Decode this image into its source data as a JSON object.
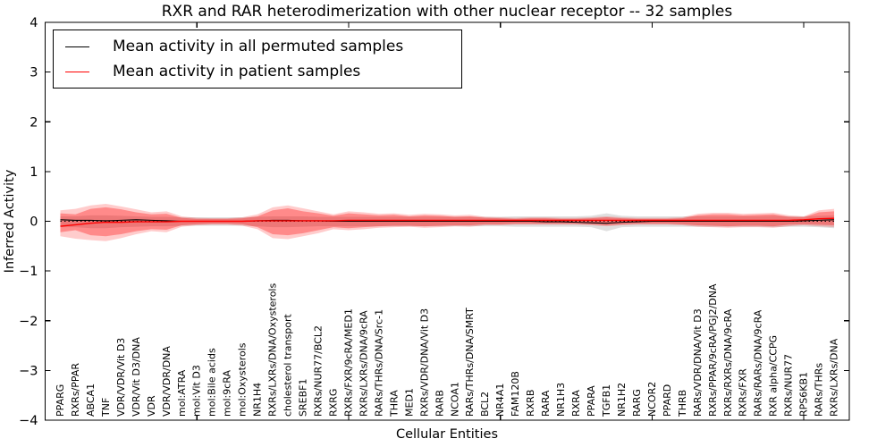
{
  "chart_data": {
    "type": "line",
    "title": "RXR and RAR heterodimerization with other nuclear receptor -- 32 samples",
    "xlabel": "Cellular Entities",
    "ylabel": "Inferred Activity",
    "ylim": [
      -4,
      4
    ],
    "yticks": [
      -4,
      -3,
      -2,
      -1,
      0,
      1,
      2,
      3,
      4
    ],
    "x_tick_positions": [
      10,
      20,
      30,
      40,
      50
    ],
    "grid": false,
    "legend_position": "upper left",
    "zero_line": {
      "color": "#000000",
      "style": "dotted"
    },
    "categories": [
      "PPARG",
      "RXRs/PPAR",
      "ABCA1",
      "TNF",
      "VDR/VDR/Vit D3",
      "VDR/Vit D3/DNA",
      "VDR",
      "VDR/VDR/DNA",
      "mol:ATRA",
      "mol:Vit D3",
      "mol:Bile acids",
      "mol:9cRA",
      "mol:Oxysterols",
      "NR1H4",
      "RXRs/LXRs/DNA/Oxysterols",
      "cholesterol transport",
      "SREBF1",
      "RXRs/NUR77/BCL2",
      "RXRG",
      "RXRs/FXR/9cRA/MED1",
      "RXRs/LXRs/DNA/9cRA",
      "RARs/THRs/DNA/Src-1",
      "THRA",
      "MED1",
      "RXRs/VDR/DNA/Vit D3",
      "RARB",
      "NCOA1",
      "RARs/THRs/DNA/SMRT",
      "BCL2",
      "NR4A1",
      "FAM120B",
      "RXRB",
      "RARA",
      "NR1H3",
      "RXRA",
      "PPARA",
      "TGFB1",
      "NR1H2",
      "RARG",
      "NCOR2",
      "PPARD",
      "THRB",
      "RARs/VDR/DNA/Vit D3",
      "RXRs/PPAR/9cRA/PGJ2/DNA",
      "RXRs/RXRs/DNA/9cRA",
      "RXRs/FXR",
      "RARs/RARs/DNA/9cRA",
      "RXR alpha/CCPG",
      "RXRs/NUR77",
      "RPS6KB1",
      "RARs/THRs",
      "RXRs/LXRs/DNA"
    ],
    "series": [
      {
        "name": "Mean activity in all permuted samples",
        "color": "#000000",
        "values": [
          0.03,
          0.02,
          0.02,
          0.01,
          0.02,
          0.03,
          0.02,
          0.01,
          0,
          0,
          0,
          0,
          0,
          0.01,
          0.02,
          0.02,
          0.01,
          0.01,
          0,
          0,
          0,
          0,
          0,
          0,
          0,
          0,
          0,
          0,
          0,
          0,
          0,
          0,
          -0.01,
          -0.01,
          -0.02,
          -0.03,
          -0.04,
          -0.02,
          -0.01,
          0,
          0,
          0,
          0,
          0,
          0,
          0,
          0,
          0,
          0,
          0.01,
          0.02,
          0.03
        ]
      },
      {
        "name": "Mean activity in patient samples",
        "color": "#ff0000",
        "values": [
          -0.1,
          -0.07,
          -0.04,
          -0.02,
          -0.02,
          -0.01,
          -0.01,
          -0.01,
          0,
          0,
          0,
          0,
          0,
          0.01,
          0.01,
          0.01,
          0.01,
          0.01,
          0.01,
          0.02,
          0.02,
          0.02,
          0.02,
          0.02,
          0.02,
          0.02,
          0.02,
          0.02,
          0.02,
          0.02,
          0.02,
          0.02,
          0.02,
          0.02,
          0.02,
          0.02,
          0.02,
          0.02,
          0.02,
          0.02,
          0.02,
          0.02,
          0.02,
          0.02,
          0.02,
          0.02,
          0.02,
          0.02,
          0.02,
          0.03,
          0.05,
          0.06
        ]
      }
    ],
    "bands": [
      {
        "name": "permuted-samples-range",
        "color": "#808080",
        "opacity": 0.25,
        "upper": [
          0.1,
          0.1,
          0.12,
          0.12,
          0.11,
          0.1,
          0.09,
          0.09,
          0.08,
          0.08,
          0.08,
          0.08,
          0.08,
          0.09,
          0.1,
          0.1,
          0.1,
          0.09,
          0.09,
          0.09,
          0.09,
          0.09,
          0.09,
          0.09,
          0.09,
          0.09,
          0.09,
          0.09,
          0.09,
          0.09,
          0.1,
          0.1,
          0.1,
          0.1,
          0.1,
          0.11,
          0.16,
          0.11,
          0.1,
          0.1,
          0.1,
          0.1,
          0.1,
          0.1,
          0.1,
          0.1,
          0.1,
          0.11,
          0.1,
          0.1,
          0.11,
          0.12
        ],
        "lower": [
          -0.12,
          -0.12,
          -0.14,
          -0.14,
          -0.12,
          -0.11,
          -0.1,
          -0.1,
          -0.09,
          -0.09,
          -0.09,
          -0.09,
          -0.09,
          -0.1,
          -0.12,
          -0.12,
          -0.11,
          -0.1,
          -0.1,
          -0.1,
          -0.1,
          -0.1,
          -0.1,
          -0.1,
          -0.1,
          -0.1,
          -0.1,
          -0.1,
          -0.1,
          -0.1,
          -0.11,
          -0.11,
          -0.11,
          -0.11,
          -0.11,
          -0.12,
          -0.2,
          -0.12,
          -0.11,
          -0.11,
          -0.11,
          -0.11,
          -0.11,
          -0.11,
          -0.11,
          -0.11,
          -0.11,
          -0.12,
          -0.11,
          -0.11,
          -0.12,
          -0.14
        ]
      },
      {
        "name": "patient-samples-outer-range",
        "color": "#ff0000",
        "opacity": 0.2,
        "upper": [
          0.22,
          0.25,
          0.32,
          0.35,
          0.3,
          0.24,
          0.18,
          0.2,
          0.1,
          0.07,
          0.06,
          0.06,
          0.08,
          0.14,
          0.28,
          0.32,
          0.26,
          0.2,
          0.14,
          0.2,
          0.18,
          0.15,
          0.16,
          0.13,
          0.15,
          0.14,
          0.12,
          0.13,
          0.09,
          0.08,
          0.07,
          0.08,
          0.08,
          0.07,
          0.07,
          0.08,
          0.1,
          0.08,
          0.07,
          0.07,
          0.07,
          0.08,
          0.15,
          0.17,
          0.17,
          0.15,
          0.16,
          0.17,
          0.12,
          0.1,
          0.22,
          0.25
        ],
        "lower": [
          -0.3,
          -0.35,
          -0.38,
          -0.4,
          -0.34,
          -0.26,
          -0.2,
          -0.22,
          -0.11,
          -0.08,
          -0.07,
          -0.07,
          -0.09,
          -0.16,
          -0.34,
          -0.36,
          -0.3,
          -0.24,
          -0.16,
          -0.18,
          -0.16,
          -0.13,
          -0.12,
          -0.11,
          -0.13,
          -0.12,
          -0.1,
          -0.11,
          -0.08,
          -0.08,
          -0.07,
          -0.07,
          -0.07,
          -0.07,
          -0.07,
          -0.08,
          -0.1,
          -0.08,
          -0.07,
          -0.07,
          -0.07,
          -0.08,
          -0.11,
          -0.12,
          -0.13,
          -0.12,
          -0.12,
          -0.13,
          -0.1,
          -0.08,
          -0.1,
          -0.12
        ]
      },
      {
        "name": "patient-samples-inner-range",
        "color": "#ff0000",
        "opacity": 0.32,
        "upper": [
          0.16,
          0.14,
          0.25,
          0.28,
          0.24,
          0.18,
          0.14,
          0.15,
          0.07,
          0.05,
          0.05,
          0.05,
          0.06,
          0.1,
          0.22,
          0.26,
          0.2,
          0.16,
          0.11,
          0.16,
          0.14,
          0.12,
          0.13,
          0.1,
          0.12,
          0.11,
          0.09,
          0.1,
          0.07,
          0.06,
          0.05,
          0.06,
          0.06,
          0.05,
          0.05,
          0.06,
          0.08,
          0.06,
          0.05,
          0.05,
          0.05,
          0.06,
          0.12,
          0.14,
          0.14,
          0.12,
          0.13,
          0.14,
          0.09,
          0.08,
          0.18,
          0.2
        ],
        "lower": [
          -0.22,
          -0.18,
          -0.28,
          -0.3,
          -0.26,
          -0.2,
          -0.16,
          -0.17,
          -0.08,
          -0.06,
          -0.05,
          -0.05,
          -0.06,
          -0.12,
          -0.26,
          -0.28,
          -0.24,
          -0.18,
          -0.12,
          -0.14,
          -0.12,
          -0.1,
          -0.09,
          -0.09,
          -0.1,
          -0.09,
          -0.08,
          -0.08,
          -0.06,
          -0.06,
          -0.05,
          -0.05,
          -0.05,
          -0.05,
          -0.05,
          -0.06,
          -0.08,
          -0.06,
          -0.05,
          -0.05,
          -0.05,
          -0.06,
          -0.08,
          -0.09,
          -0.1,
          -0.09,
          -0.09,
          -0.1,
          -0.07,
          -0.06,
          -0.07,
          -0.08
        ]
      }
    ]
  }
}
